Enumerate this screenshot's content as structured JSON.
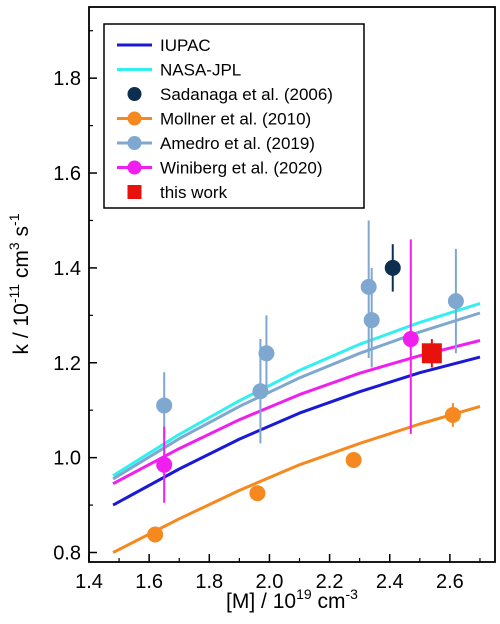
{
  "chart_data": {
    "type": "line",
    "title": "",
    "xlabel": {
      "base": "[M] / 10",
      "exp1": "19",
      "mid": " cm",
      "exp2": "-3"
    },
    "ylabel": {
      "base": "k / 10",
      "exp1": "-11",
      "mid": " cm",
      "exp2": "3",
      "mid2": " s",
      "exp3": "-1"
    },
    "xlim": [
      1.4,
      2.75
    ],
    "ylim": [
      0.78,
      1.95
    ],
    "x_ticks": [
      1.4,
      1.6,
      1.8,
      2.0,
      2.2,
      2.4,
      2.6
    ],
    "x_tick_labels": [
      "1.4",
      "1.6",
      "1.8",
      "2.0",
      "2.2",
      "2.4",
      "2.6"
    ],
    "y_ticks": [
      0.8,
      1.0,
      1.2,
      1.4,
      1.6,
      1.8
    ],
    "y_tick_labels": [
      "0.8",
      "1.0",
      "1.2",
      "1.4",
      "1.6",
      "1.8"
    ],
    "grid": false,
    "legend_position": "top-left",
    "legend": [
      {
        "label": "IUPAC",
        "color": "#1a1ad6",
        "kind": "line"
      },
      {
        "label": "NASA-JPL",
        "color": "#33f0f0",
        "kind": "line"
      },
      {
        "label": "Sadanaga et al. (2006)",
        "color": "#0d2f4f",
        "kind": "point"
      },
      {
        "label": "Mollner et al. (2010)",
        "color": "#f5891f",
        "kind": "line-point"
      },
      {
        "label": "Amedro et al. (2019)",
        "color": "#7fa8d1",
        "kind": "line-point"
      },
      {
        "label": "Winiberg et al. (2020)",
        "color": "#f01ff0",
        "kind": "line-point"
      },
      {
        "label": "this work",
        "color": "#e8120c",
        "kind": "square"
      }
    ],
    "curves": [
      {
        "name": "NASA-JPL",
        "color": "#33f0f0",
        "x": [
          1.48,
          1.7,
          1.9,
          2.1,
          2.3,
          2.5,
          2.7
        ],
        "y": [
          0.962,
          1.049,
          1.12,
          1.184,
          1.239,
          1.285,
          1.325
        ]
      },
      {
        "name": "Amedro et al. (2019)",
        "color": "#7fa8d1",
        "x": [
          1.48,
          1.7,
          1.9,
          2.1,
          2.3,
          2.5,
          2.7
        ],
        "y": [
          0.955,
          1.04,
          1.108,
          1.168,
          1.22,
          1.265,
          1.305
        ]
      },
      {
        "name": "Winiberg et al. (2020)",
        "color": "#f01ff0",
        "x": [
          1.48,
          1.7,
          1.9,
          2.1,
          2.3,
          2.5,
          2.7
        ],
        "y": [
          0.945,
          1.019,
          1.08,
          1.133,
          1.178,
          1.215,
          1.247
        ]
      },
      {
        "name": "IUPAC",
        "color": "#1a1ad6",
        "x": [
          1.48,
          1.7,
          1.9,
          2.1,
          2.3,
          2.5,
          2.7
        ],
        "y": [
          0.9,
          0.976,
          1.039,
          1.094,
          1.139,
          1.179,
          1.212
        ]
      },
      {
        "name": "Mollner et al. (2010)",
        "color": "#f5891f",
        "x": [
          1.48,
          1.7,
          1.9,
          2.1,
          2.3,
          2.5,
          2.7
        ],
        "y": [
          0.8,
          0.871,
          0.931,
          0.985,
          1.03,
          1.071,
          1.108
        ]
      }
    ],
    "points": [
      {
        "series": "Amedro et al. (2019)",
        "color": "#7fa8d1",
        "marker": "circle",
        "data": [
          {
            "x": 1.65,
            "y": 1.11,
            "low": 1.04,
            "high": 1.18
          },
          {
            "x": 1.97,
            "y": 1.14,
            "low": 1.03,
            "high": 1.25
          },
          {
            "x": 1.99,
            "y": 1.22,
            "low": 1.14,
            "high": 1.3
          },
          {
            "x": 2.33,
            "y": 1.36,
            "low": 1.21,
            "high": 1.5
          },
          {
            "x": 2.34,
            "y": 1.29,
            "low": 1.19,
            "high": 1.4
          },
          {
            "x": 2.62,
            "y": 1.33,
            "low": 1.22,
            "high": 1.44
          }
        ]
      },
      {
        "series": "Mollner et al. (2010)",
        "color": "#f5891f",
        "marker": "circle",
        "data": [
          {
            "x": 1.62,
            "y": 0.838,
            "low": 0.828,
            "high": 0.848
          },
          {
            "x": 1.96,
            "y": 0.925,
            "low": 0.915,
            "high": 0.935
          },
          {
            "x": 2.28,
            "y": 0.995,
            "low": 0.985,
            "high": 1.005
          },
          {
            "x": 2.61,
            "y": 1.09,
            "low": 1.065,
            "high": 1.115
          }
        ]
      },
      {
        "series": "Winiberg et al. (2020)",
        "color": "#f01ff0",
        "marker": "circle",
        "data": [
          {
            "x": 1.65,
            "y": 0.985,
            "low": 0.905,
            "high": 1.065
          },
          {
            "x": 2.47,
            "y": 1.25,
            "low": 1.05,
            "high": 1.46
          }
        ]
      },
      {
        "series": "Sadanaga et al. (2006)",
        "color": "#0d2f4f",
        "marker": "circle",
        "data": [
          {
            "x": 2.41,
            "y": 1.4,
            "low": 1.35,
            "high": 1.45
          }
        ]
      },
      {
        "series": "this work",
        "color": "#e8120c",
        "marker": "square",
        "data": [
          {
            "x": 2.54,
            "y": 1.22,
            "low": 1.19,
            "high": 1.25
          }
        ]
      }
    ]
  }
}
